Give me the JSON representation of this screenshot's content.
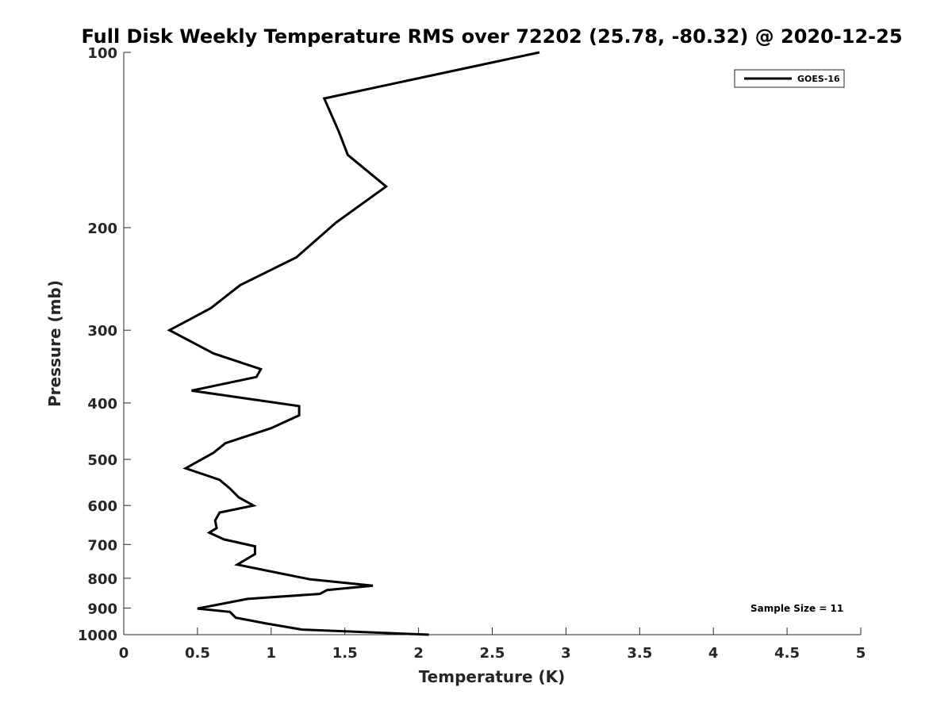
{
  "chart_data": {
    "type": "line",
    "title": "Full Disk Weekly Temperature RMS over 72202 (25.78, -80.32) @ 2020-12-25",
    "xlabel": "Temperature (K)",
    "ylabel": "Pressure (mb)",
    "xlim": [
      0,
      5
    ],
    "ylim": [
      100,
      1000
    ],
    "y_scale": "log",
    "y_reversed": true,
    "grid": false,
    "legend_position": "top-right",
    "x_ticks": [
      "0",
      "0.5",
      "1",
      "1.5",
      "2",
      "2.5",
      "3",
      "3.5",
      "4",
      "4.5",
      "5"
    ],
    "y_ticks": [
      "100",
      "200",
      "300",
      "400",
      "500",
      "600",
      "700",
      "800",
      "900",
      "1000"
    ],
    "annotation": "Sample Size = 11",
    "series": [
      {
        "name": "GOES-16",
        "color": "#000000",
        "x": [
          2.82,
          1.36,
          1.46,
          1.52,
          1.78,
          1.44,
          1.17,
          0.79,
          0.59,
          0.31,
          0.61,
          0.93,
          0.9,
          0.46,
          1.19,
          1.19,
          1.0,
          0.69,
          0.61,
          0.42,
          0.65,
          0.72,
          0.78,
          0.88,
          0.65,
          0.62,
          0.63,
          0.58,
          0.68,
          0.89,
          0.89,
          0.77,
          0.99,
          1.26,
          1.69,
          1.38,
          1.33,
          0.84,
          0.5,
          0.72,
          0.76,
          0.97,
          1.21,
          2.07
        ],
        "y": [
          100,
          120,
          137,
          150,
          170,
          196,
          225,
          251,
          275,
          300,
          329,
          350,
          361,
          381,
          405,
          420,
          442,
          469,
          487,
          518,
          542,
          561,
          581,
          600,
          617,
          637,
          656,
          668,
          686,
          705,
          727,
          758,
          778,
          803,
          824,
          838,
          851,
          868,
          902,
          914,
          935,
          957,
          980,
          1000
        ]
      }
    ]
  }
}
